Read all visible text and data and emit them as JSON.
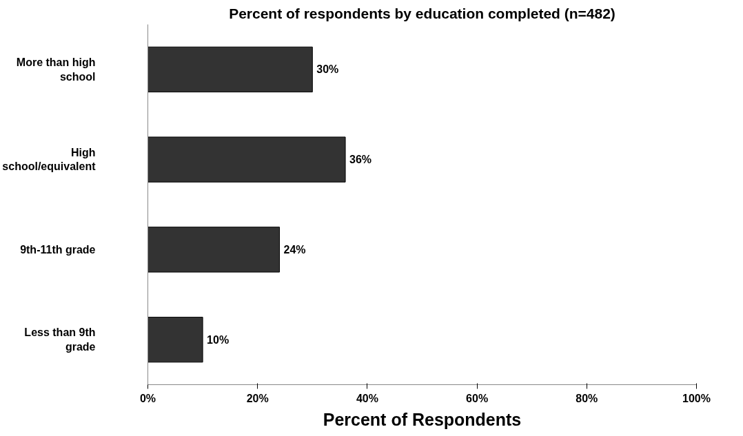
{
  "chart_data": {
    "type": "bar",
    "orientation": "horizontal",
    "title": "Percent of respondents by education completed (n=482)",
    "xlabel": "Percent of Respondents",
    "categories": [
      "More than high school",
      "High school/equivalent",
      "9th-11th grade",
      "Less than 9th grade"
    ],
    "values": [
      30,
      36,
      24,
      10
    ],
    "color": "#333333",
    "value_labels": [
      "30%",
      "36%",
      "24%",
      "10%"
    ],
    "xlim": [
      0,
      100
    ],
    "xticks": [
      {
        "value": 0,
        "label": "0%"
      },
      {
        "value": 20,
        "label": "20%"
      },
      {
        "value": 40,
        "label": "40%"
      },
      {
        "value": 60,
        "label": "60%"
      },
      {
        "value": 80,
        "label": "80%"
      },
      {
        "value": 100,
        "label": "100%"
      }
    ],
    "grid": false
  }
}
